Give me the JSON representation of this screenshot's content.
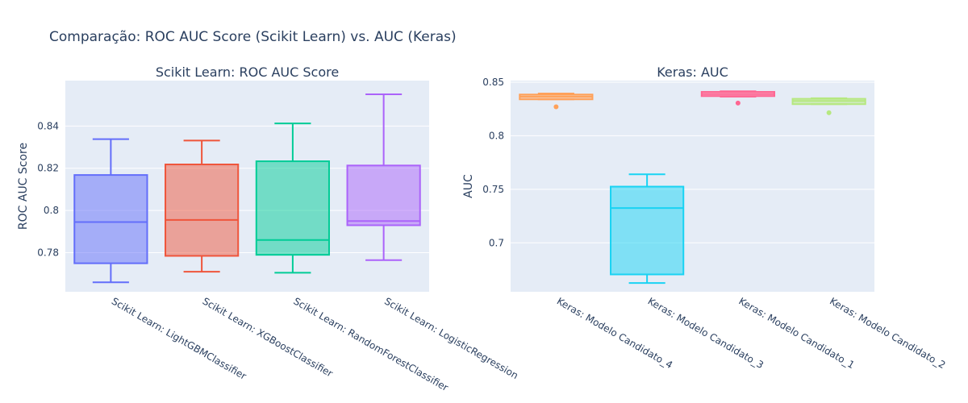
{
  "title": "Comparação: ROC AUC Score (Scikit Learn) vs. AUC (Keras)",
  "chart_data": [
    {
      "type": "box",
      "title": "Scikit Learn: ROC AUC Score",
      "xlabel": "",
      "ylabel": "ROC AUC Score",
      "ylim": [
        0.7615,
        0.8615
      ],
      "yticks": [
        0.78,
        0.8,
        0.82,
        0.84
      ],
      "ytick_labels": [
        "0.78",
        "0.8",
        "0.82",
        "0.84"
      ],
      "series": [
        {
          "category": "Scikit Learn: LightGBMClassifier",
          "color": "#636efa",
          "min": 0.766,
          "q1": 0.775,
          "median": 0.7945,
          "q3": 0.8168,
          "max": 0.8338,
          "outliers": []
        },
        {
          "category": "Scikit Learn: XGBoostClassifier",
          "color": "#ef553b",
          "min": 0.771,
          "q1": 0.7785,
          "median": 0.7955,
          "q3": 0.8218,
          "max": 0.8331,
          "outliers": []
        },
        {
          "category": "Scikit Learn: RandomForestClassifier",
          "color": "#00cc96",
          "min": 0.7705,
          "q1": 0.779,
          "median": 0.786,
          "q3": 0.8233,
          "max": 0.8412,
          "outliers": []
        },
        {
          "category": "Scikit Learn: LogisticRegression",
          "color": "#ab63fa",
          "min": 0.7765,
          "q1": 0.793,
          "median": 0.795,
          "q3": 0.8213,
          "max": 0.855,
          "outliers": []
        }
      ]
    },
    {
      "type": "box",
      "title": "Keras: AUC",
      "xlabel": "",
      "ylabel": "AUC",
      "ylim": [
        0.6543,
        0.8515
      ],
      "yticks": [
        0.7,
        0.75,
        0.8,
        0.85
      ],
      "ytick_labels": [
        "0.7",
        "0.75",
        "0.8",
        "0.85"
      ],
      "series": [
        {
          "category": "Keras: Modelo Candidato_4",
          "color": "#ffa15a",
          "min": 0.834,
          "q1": 0.834,
          "median": 0.8365,
          "q3": 0.8385,
          "max": 0.8395,
          "outliers": [
            0.827
          ]
        },
        {
          "category": "Keras: Modelo Candidato_3",
          "color": "#19d3f3",
          "min": 0.6625,
          "q1": 0.6705,
          "median": 0.7325,
          "q3": 0.7525,
          "max": 0.764,
          "outliers": []
        },
        {
          "category": "Keras: Modelo Candidato_1",
          "color": "#ff6692",
          "min": 0.8365,
          "q1": 0.837,
          "median": 0.839,
          "q3": 0.841,
          "max": 0.8415,
          "outliers": [
            0.8305
          ]
        },
        {
          "category": "Keras: Modelo Candidato_2",
          "color": "#b6e880",
          "min": 0.8295,
          "q1": 0.8295,
          "median": 0.8325,
          "q3": 0.8345,
          "max": 0.835,
          "outliers": [
            0.8215
          ]
        }
      ]
    }
  ]
}
